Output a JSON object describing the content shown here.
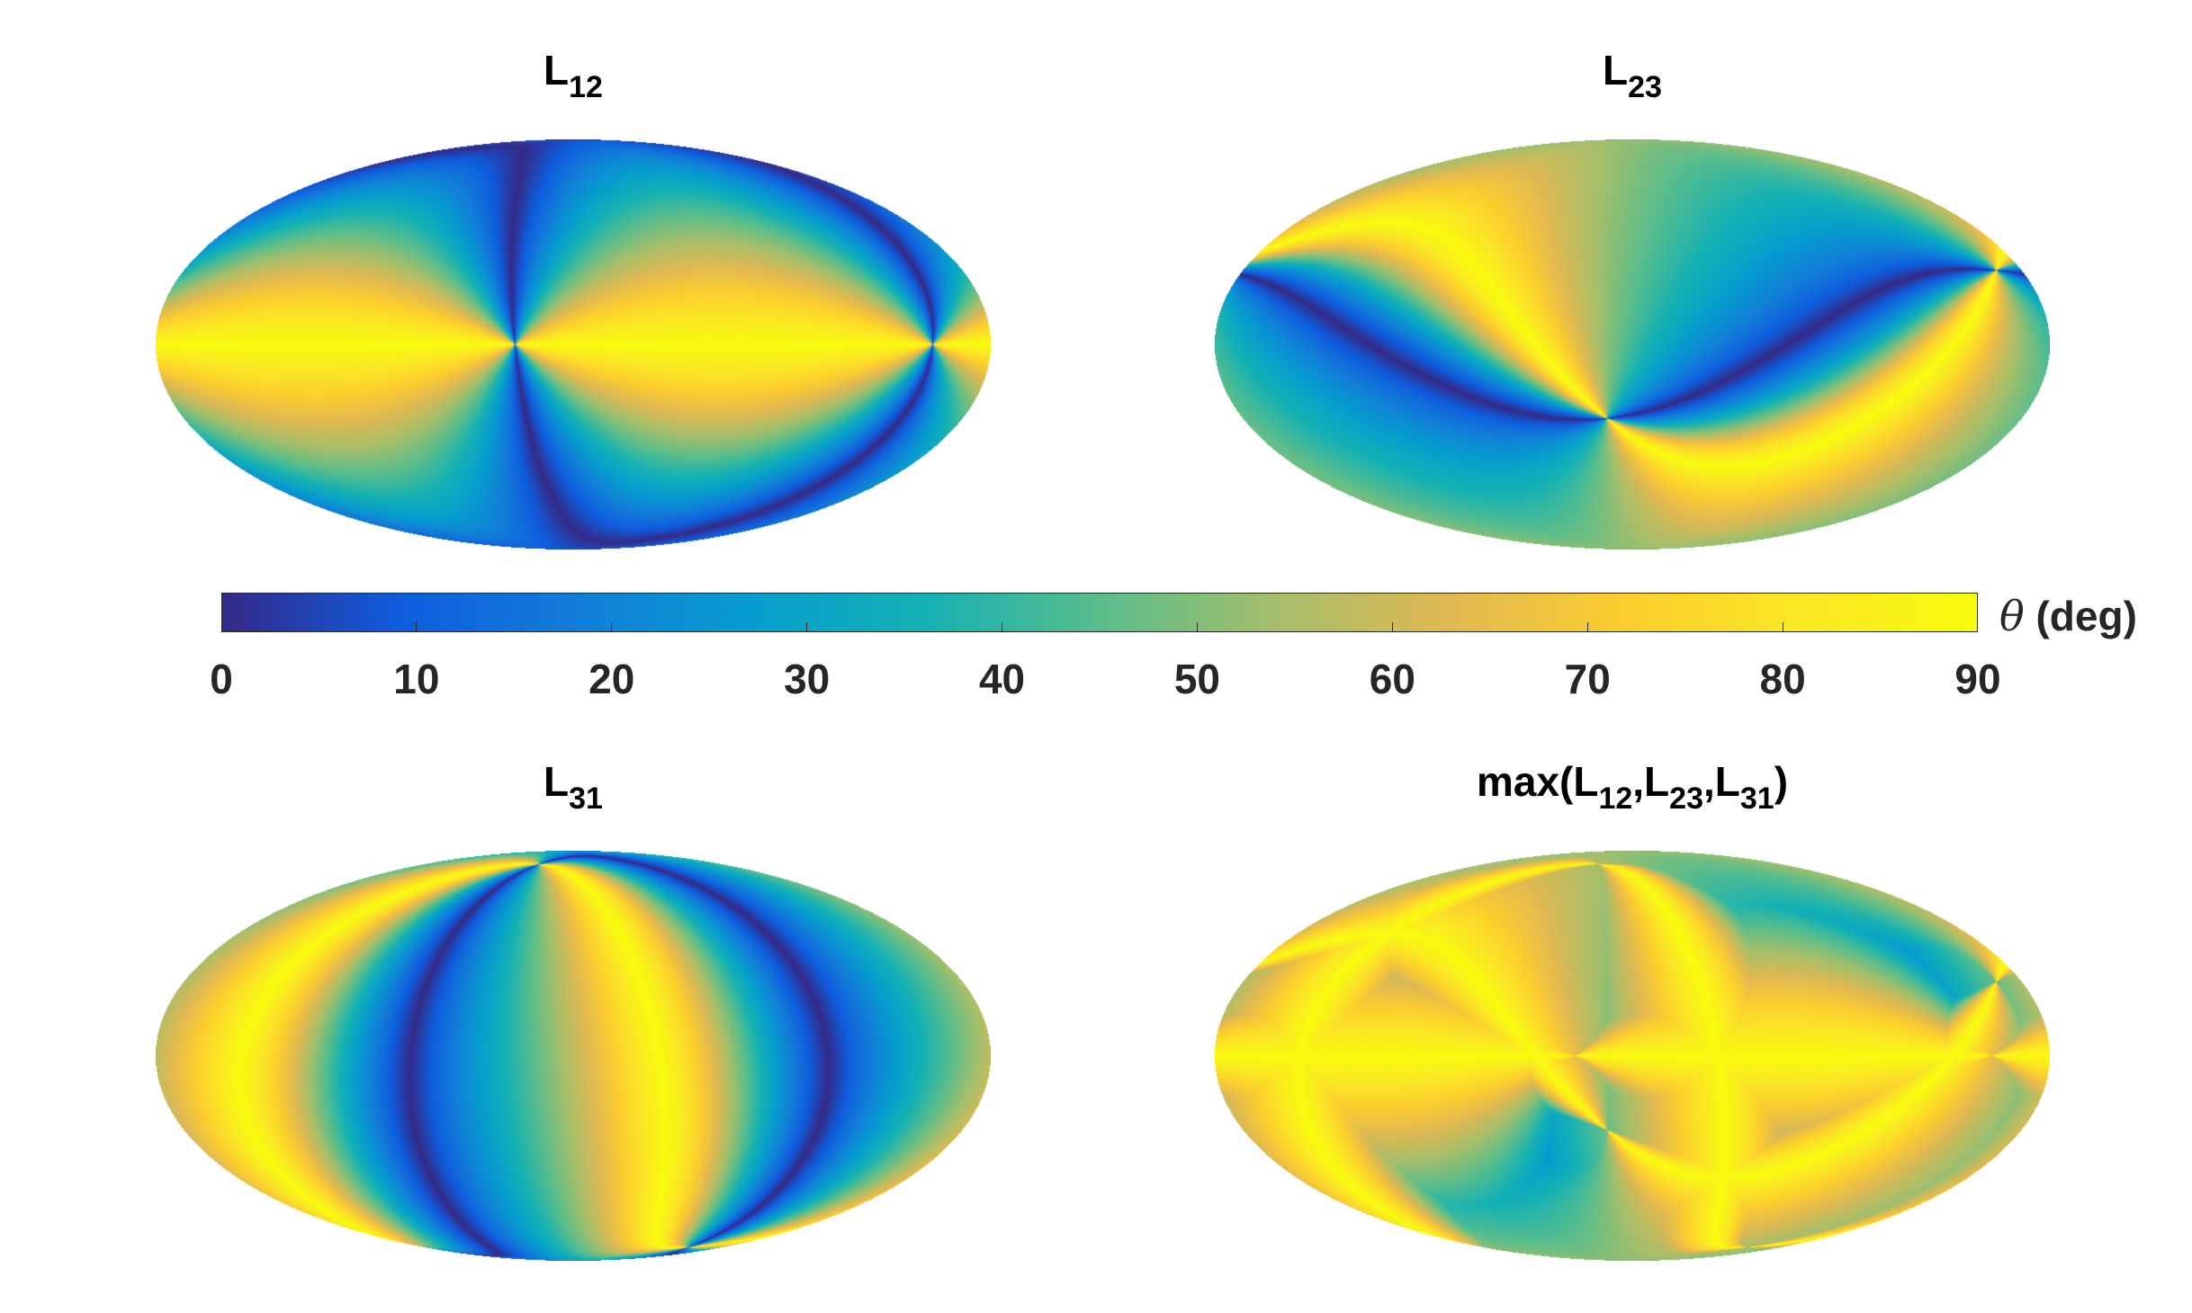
{
  "chart_data": [
    {
      "type": "heatmap",
      "projection": "mollweide",
      "title": "L12",
      "colormap": "parula",
      "clim": [
        0,
        90
      ],
      "axes": {
        "a": [
          0,
          0,
          1
        ],
        "b": [
          0.42,
          0.9,
          0.12
        ]
      },
      "fn": "angle"
    },
    {
      "type": "heatmap",
      "projection": "mollweide",
      "title": "L23",
      "colormap": "parula",
      "clim": [
        0,
        90
      ],
      "axes": {
        "a": [
          0.47,
          0.53,
          0.7
        ],
        "b": [
          -0.42,
          0.18,
          -0.89
        ]
      },
      "fn": "angle"
    },
    {
      "type": "heatmap",
      "projection": "mollweide",
      "title": "L31",
      "colormap": "parula",
      "clim": [
        0,
        90
      ],
      "axes": {
        "a": [
          -0.6,
          0.8,
          0.2
        ],
        "b": [
          0.94,
          0.34,
          -0.1
        ]
      },
      "fn": "angle"
    },
    {
      "type": "heatmap",
      "projection": "mollweide",
      "title": "max(L12,L23,L31)",
      "colormap": "parula",
      "clim": [
        0,
        90
      ],
      "fn": "max"
    }
  ],
  "titles": {
    "p1": {
      "base": "L",
      "sub": "12"
    },
    "p2": {
      "base": "L",
      "sub": "23"
    },
    "p3": {
      "base": "L",
      "sub": "31"
    },
    "p4": {
      "prefix": "max(L",
      "s1": "12",
      "c1": ",L",
      "s2": "23",
      "c2": ",L",
      "s3": "31",
      "suffix": ")"
    }
  },
  "colorbar": {
    "ticks": [
      0,
      10,
      20,
      30,
      40,
      50,
      60,
      70,
      80,
      90
    ],
    "tick_labels": [
      "0",
      "10",
      "20",
      "30",
      "40",
      "50",
      "60",
      "70",
      "80",
      "90"
    ],
    "label_symbol": "θ",
    "label_unit": " (deg)",
    "range": [
      0,
      90
    ]
  }
}
